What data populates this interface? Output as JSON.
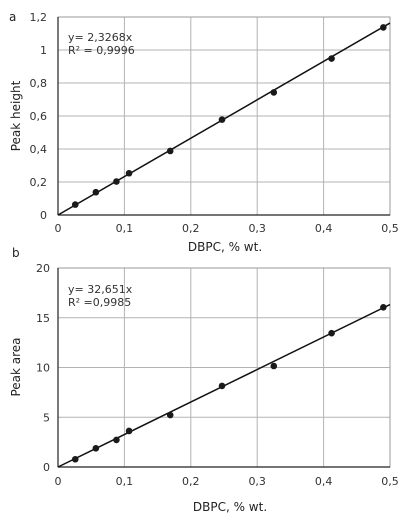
{
  "chart_data": [
    {
      "type": "scatter",
      "panel_label": "a",
      "xlabel": "DBPC, % wt.",
      "ylabel": "Peak height",
      "equation": "y= 2,3268x",
      "r2": "R² = 0,9996",
      "xlim": [
        0,
        0.5
      ],
      "ylim": [
        0,
        1.2
      ],
      "x_ticks": [
        "0",
        "0,1",
        "0,2",
        "0,3",
        "0,4",
        "0,5"
      ],
      "x_tick_values": [
        0,
        0.1,
        0.2,
        0.3,
        0.4,
        0.5
      ],
      "y_ticks": [
        "0",
        "0,2",
        "0,4",
        "0,6",
        "0,8",
        "1",
        "1,2"
      ],
      "y_tick_values": [
        0,
        0.2,
        0.4,
        0.6,
        0.8,
        1.0,
        1.2
      ],
      "grid": true,
      "fit": {
        "slope": 2.3268,
        "x_range": [
          0,
          0.5
        ]
      },
      "points": [
        {
          "x": 0.026,
          "y": 0.063
        },
        {
          "x": 0.057,
          "y": 0.138
        },
        {
          "x": 0.088,
          "y": 0.203
        },
        {
          "x": 0.107,
          "y": 0.253
        },
        {
          "x": 0.169,
          "y": 0.388
        },
        {
          "x": 0.247,
          "y": 0.578
        },
        {
          "x": 0.325,
          "y": 0.743
        },
        {
          "x": 0.412,
          "y": 0.948
        },
        {
          "x": 0.49,
          "y": 1.137
        }
      ]
    },
    {
      "type": "scatter",
      "panel_label": "b",
      "xlabel": "DBPC, % wt.",
      "ylabel": "Peak area",
      "equation": "y= 32,651x",
      "r2": "R² =0,9985",
      "xlim": [
        0,
        0.5
      ],
      "ylim": [
        0,
        20
      ],
      "x_ticks": [
        "0",
        "0,1",
        "0,2",
        "0,3",
        "0,4",
        "0,5"
      ],
      "x_tick_values": [
        0,
        0.1,
        0.2,
        0.3,
        0.4,
        0.5
      ],
      "y_ticks": [
        "0",
        "5",
        "10",
        "15",
        "20"
      ],
      "y_tick_values": [
        0,
        5,
        10,
        15,
        20
      ],
      "grid": true,
      "fit": {
        "slope": 32.651,
        "x_range": [
          0,
          0.5
        ]
      },
      "points": [
        {
          "x": 0.026,
          "y": 0.78
        },
        {
          "x": 0.057,
          "y": 1.88
        },
        {
          "x": 0.088,
          "y": 2.72
        },
        {
          "x": 0.107,
          "y": 3.62
        },
        {
          "x": 0.169,
          "y": 5.22
        },
        {
          "x": 0.247,
          "y": 8.15
        },
        {
          "x": 0.325,
          "y": 10.15
        },
        {
          "x": 0.412,
          "y": 13.45
        },
        {
          "x": 0.49,
          "y": 16.05
        }
      ]
    }
  ]
}
